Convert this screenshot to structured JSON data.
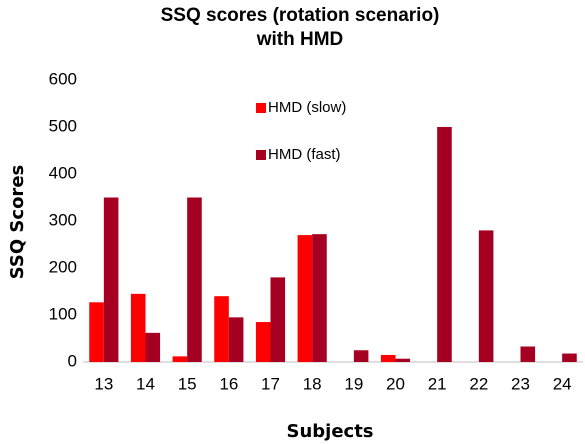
{
  "chart_data": {
    "type": "bar",
    "title": "SSQ scores (rotation scenario)",
    "subtitle": "with HMD",
    "x_label": "Subjects",
    "y_label": "SSQ Scores",
    "categories": [
      "13",
      "14",
      "15",
      "16",
      "17",
      "18",
      "19",
      "20",
      "21",
      "22",
      "23",
      "24"
    ],
    "series": [
      {
        "name": "HMD (slow)",
        "color": "#ff0000",
        "values": [
          127,
          145,
          12,
          140,
          85,
          270,
          0,
          15,
          0,
          0,
          0,
          0
        ]
      },
      {
        "name": "HMD (fast)",
        "color": "#a50021",
        "values": [
          350,
          62,
          350,
          95,
          180,
          272,
          25,
          7,
          500,
          280,
          33,
          18
        ]
      }
    ],
    "ylim": [
      0,
      600
    ],
    "yticks": [
      0,
      100,
      200,
      300,
      400,
      500,
      600
    ],
    "grid": false,
    "legend": "top"
  }
}
